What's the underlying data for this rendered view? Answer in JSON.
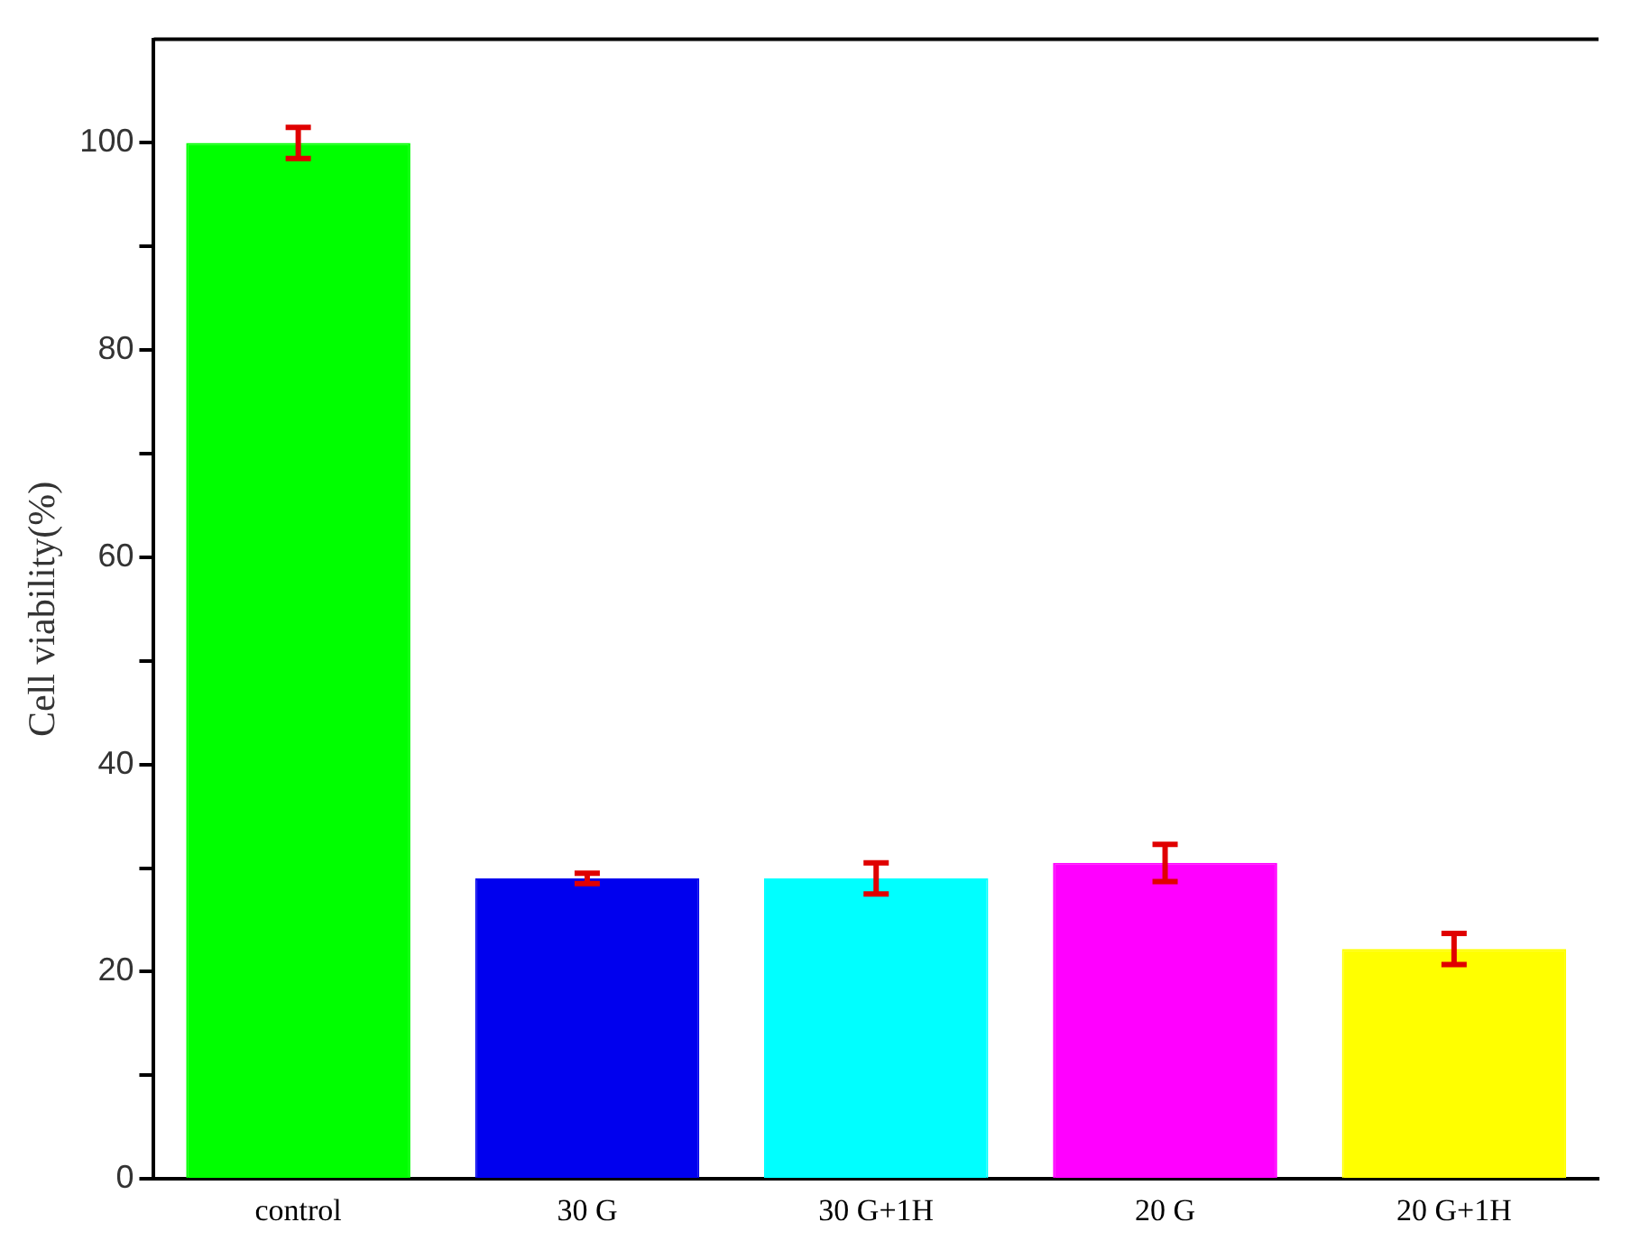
{
  "chart_data": {
    "type": "bar",
    "ylabel": "Cell viability(%)",
    "categories": [
      "control",
      "30 G",
      "30 G+1H",
      "20 G",
      "20 G+1H"
    ],
    "values": [
      100,
      29,
      29,
      30.5,
      22.2
    ],
    "colors": [
      "#00ff00",
      "#0000ee",
      "#00ffff",
      "#ff00ff",
      "#ffff00"
    ],
    "errors": [
      1.5,
      0.5,
      1.5,
      1.8,
      1.5
    ],
    "ylim": [
      0,
      110
    ],
    "yticks": [
      0,
      {
        "value": 10,
        "label": null
      },
      20,
      {
        "value": 30,
        "label": null
      },
      40,
      {
        "value": 50,
        "label": null
      },
      60,
      {
        "value": 70,
        "label": null
      },
      80,
      {
        "value": 90,
        "label": null
      },
      100
    ],
    "grid": false,
    "legend": false
  }
}
